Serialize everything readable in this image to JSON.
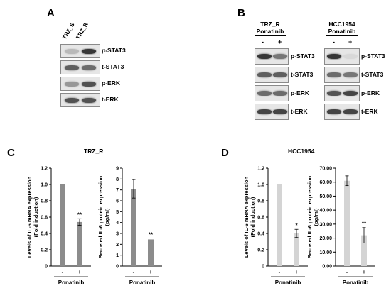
{
  "figure": {
    "panel_a": {
      "letter": "A",
      "lanes": [
        "TRZ_S",
        "TRZ_R"
      ],
      "blots": [
        {
          "label": "p-STAT3",
          "intensity": [
            0.35,
            0.95
          ]
        },
        {
          "label": "t-STAT3",
          "intensity": [
            0.8,
            0.75
          ]
        },
        {
          "label": "p-ERK",
          "intensity": [
            0.55,
            0.85
          ]
        },
        {
          "label": "t-ERK",
          "intensity": [
            0.85,
            0.85
          ]
        }
      ]
    },
    "panel_b": {
      "letter": "B",
      "groups": [
        {
          "cell_line": "TRZ_R",
          "drug": "Ponatinib",
          "signs": [
            "-",
            "+"
          ],
          "blots": [
            {
              "label": "p-STAT3",
              "intensity": [
                0.95,
                0.7
              ]
            },
            {
              "label": "t-STAT3",
              "intensity": [
                0.8,
                0.8
              ]
            },
            {
              "label": "p-ERK",
              "intensity": [
                0.75,
                0.75
              ]
            },
            {
              "label": "t-ERK",
              "intensity": [
                0.9,
                0.9
              ]
            }
          ]
        },
        {
          "cell_line": "HCC1954",
          "drug": "Ponatinib",
          "signs": [
            "-",
            "+"
          ],
          "blots": [
            {
              "label": "p-STAT3",
              "intensity": [
                0.95,
                0.08
              ]
            },
            {
              "label": "t-STAT3",
              "intensity": [
                0.75,
                0.7
              ]
            },
            {
              "label": "p-ERK",
              "intensity": [
                0.85,
                0.9
              ]
            },
            {
              "label": "t-ERK",
              "intensity": [
                0.9,
                0.9
              ]
            }
          ]
        }
      ]
    },
    "panel_c": {
      "letter": "C",
      "title": "TRZ_R"
    },
    "panel_d": {
      "letter": "D",
      "title": "HCC1954"
    }
  },
  "chart_data": [
    {
      "id": "c-mrna",
      "type": "bar",
      "categories": [
        "-",
        "+"
      ],
      "values": [
        1.0,
        0.54
      ],
      "errors": [
        0.005,
        0.04
      ],
      "significance": [
        "",
        "**"
      ],
      "ylabel": "Levels of IL-6 mRNA expression (Fold induction)",
      "xlabel": "Ponatinib",
      "ylim": [
        0,
        1.2
      ],
      "yticks": [
        "0",
        "0.2",
        "0.4",
        "0.6",
        "0.8",
        "1.0",
        "1.2"
      ],
      "bar_color": "#8c8c8c"
    },
    {
      "id": "c-protein",
      "type": "bar",
      "categories": [
        "-",
        "+"
      ],
      "values": [
        7.1,
        2.45
      ],
      "errors": [
        0.85,
        0.05
      ],
      "significance": [
        "",
        "**"
      ],
      "ylabel": "Secreted IL-6 protein expression (pg/ml)",
      "xlabel": "Ponatinib",
      "ylim": [
        0,
        9
      ],
      "yticks": [
        "0",
        "1",
        "2",
        "3",
        "4",
        "5",
        "6",
        "7",
        "8",
        "9"
      ],
      "bar_color": "#8c8c8c"
    },
    {
      "id": "d-mrna",
      "type": "bar",
      "categories": [
        "-",
        "+"
      ],
      "values": [
        1.0,
        0.4
      ],
      "errors": [
        0.005,
        0.05
      ],
      "significance": [
        "",
        "*"
      ],
      "ylabel": "Levels of IL-6 mRNA expression (Fold induction)",
      "xlabel": "Ponatinib",
      "ylim": [
        0,
        1.2
      ],
      "yticks": [
        "0",
        "0.2",
        "0.4",
        "0.6",
        "0.8",
        "1.0",
        "1.2"
      ],
      "bar_color": "#d4d4d4"
    },
    {
      "id": "d-protein",
      "type": "bar",
      "categories": [
        "-",
        "+"
      ],
      "values": [
        61,
        22
      ],
      "errors": [
        3.5,
        5.5
      ],
      "significance": [
        "",
        "**"
      ],
      "ylabel": "Secreted IL-6 protein expression (pg/ml)",
      "xlabel": "Ponatinib",
      "ylim": [
        0,
        70
      ],
      "yticks": [
        "0.00",
        "10.00",
        "20.00",
        "30.00",
        "40.00",
        "50.00",
        "60.00",
        "70.00"
      ],
      "bar_color": "#d4d4d4"
    }
  ]
}
